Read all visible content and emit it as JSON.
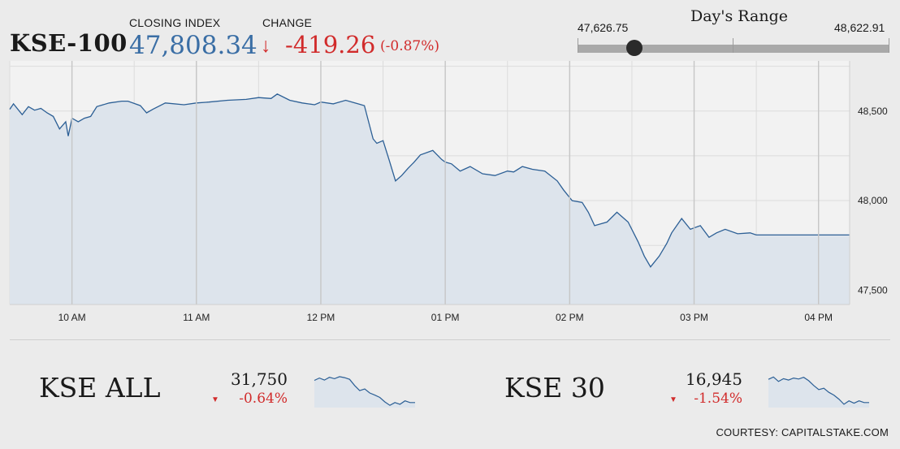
{
  "header": {
    "index_name": "KSE-100",
    "closing_label": "CLOSING INDEX",
    "closing_value": "47,808.34",
    "change_label": "CHANGE",
    "change_arrow": "↓",
    "change_value": "-419.26",
    "change_pct": "(-0.87%)"
  },
  "day_range": {
    "title": "Day's Range",
    "low": "47,626.75",
    "high": "48,622.91",
    "current": 47808.34,
    "low_value": 47626.75,
    "high_value": 48622.91
  },
  "chart_data": {
    "type": "area",
    "title": "",
    "xlabel": "",
    "ylabel": "",
    "x_ticks": [
      "10 AM",
      "11 AM",
      "12 PM",
      "01 PM",
      "02 PM",
      "03 PM",
      "04 PM"
    ],
    "x_tick_values": [
      10,
      11,
      12,
      13,
      14,
      15,
      16
    ],
    "y_ticks": [
      "47,500",
      "48,000",
      "48,500"
    ],
    "y_tick_values": [
      47500,
      48000,
      48500
    ],
    "xlim": [
      9.5,
      16.25
    ],
    "ylim": [
      47420,
      48780
    ],
    "grid": true,
    "colors": {
      "line": "#2c5f95",
      "fill": "#dde4ec"
    },
    "x": [
      9.5,
      9.53,
      9.6,
      9.65,
      9.7,
      9.75,
      9.8,
      9.85,
      9.9,
      9.95,
      9.97,
      10.0,
      10.05,
      10.1,
      10.15,
      10.2,
      10.3,
      10.4,
      10.45,
      10.55,
      10.6,
      10.65,
      10.75,
      10.9,
      11.0,
      11.1,
      11.25,
      11.4,
      11.5,
      11.6,
      11.65,
      11.75,
      11.85,
      11.95,
      12.0,
      12.1,
      12.2,
      12.3,
      12.35,
      12.42,
      12.45,
      12.5,
      12.55,
      12.6,
      12.65,
      12.7,
      12.75,
      12.8,
      12.9,
      12.97,
      13.0,
      13.05,
      13.12,
      13.2,
      13.3,
      13.4,
      13.5,
      13.55,
      13.62,
      13.7,
      13.8,
      13.9,
      13.95,
      14.02,
      14.1,
      14.15,
      14.2,
      14.3,
      14.38,
      14.47,
      14.55,
      14.6,
      14.65,
      14.72,
      14.78,
      14.82,
      14.9,
      14.97,
      15.05,
      15.12,
      15.18,
      15.25,
      15.35,
      15.45,
      15.5,
      16.25
    ],
    "y": [
      48510,
      48540,
      48480,
      48525,
      48505,
      48515,
      48490,
      48470,
      48400,
      48440,
      48360,
      48460,
      48440,
      48460,
      48470,
      48525,
      48545,
      48555,
      48555,
      48530,
      48490,
      48510,
      48545,
      48535,
      48545,
      48550,
      48560,
      48565,
      48575,
      48570,
      48595,
      48560,
      48545,
      48535,
      48550,
      48540,
      48560,
      48540,
      48530,
      48345,
      48320,
      48335,
      48225,
      48110,
      48140,
      48180,
      48215,
      48255,
      48280,
      48230,
      48215,
      48205,
      48165,
      48190,
      48150,
      48140,
      48165,
      48160,
      48190,
      48175,
      48165,
      48110,
      48060,
      48000,
      47990,
      47935,
      47860,
      47880,
      47935,
      47880,
      47770,
      47690,
      47630,
      47690,
      47760,
      47820,
      47900,
      47840,
      47860,
      47795,
      47820,
      47840,
      47815,
      47820,
      47808,
      47808
    ]
  },
  "sub_indices": [
    {
      "name": "KSE ALL",
      "value": "31,750",
      "change": "-0.64%",
      "spark": [
        0.75,
        0.82,
        0.76,
        0.84,
        0.8,
        0.86,
        0.83,
        0.78,
        0.6,
        0.45,
        0.5,
        0.38,
        0.32,
        0.25,
        0.12,
        0.02,
        0.1,
        0.05,
        0.15,
        0.1,
        0.1
      ]
    },
    {
      "name": "KSE 30",
      "value": "16,945",
      "change": "-1.54%",
      "spark": [
        0.78,
        0.85,
        0.72,
        0.8,
        0.76,
        0.82,
        0.79,
        0.84,
        0.74,
        0.6,
        0.48,
        0.52,
        0.4,
        0.32,
        0.2,
        0.05,
        0.15,
        0.08,
        0.15,
        0.1,
        0.1
      ]
    }
  ],
  "footer": {
    "courtesy": "COURTESY: CAPITALSTAKE.COM"
  }
}
